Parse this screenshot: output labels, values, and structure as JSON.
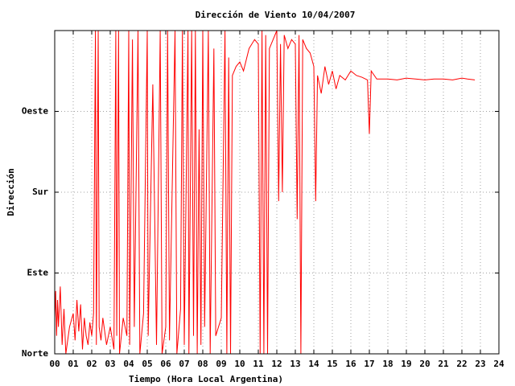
{
  "chart_data": {
    "type": "line",
    "title": "Dirección de Viento 10/04/2007",
    "xlabel": "Tiempo (Hora Local Argentina)",
    "ylabel": "Dirección",
    "color": "#ff0000",
    "grid": true,
    "xlim": [
      0,
      24
    ],
    "ylim": [
      0,
      360
    ],
    "xticks": [
      {
        "value": 0,
        "label": "00"
      },
      {
        "value": 1,
        "label": "01"
      },
      {
        "value": 2,
        "label": "02"
      },
      {
        "value": 3,
        "label": "03"
      },
      {
        "value": 4,
        "label": "04"
      },
      {
        "value": 5,
        "label": "05"
      },
      {
        "value": 6,
        "label": "06"
      },
      {
        "value": 7,
        "label": "07"
      },
      {
        "value": 8,
        "label": "08"
      },
      {
        "value": 9,
        "label": "09"
      },
      10,
      11,
      12,
      13,
      14,
      15,
      16,
      17,
      18,
      19,
      20,
      21,
      22,
      23,
      24
    ],
    "yticks": [
      {
        "value": 0,
        "label": "Norte"
      },
      {
        "value": 90,
        "label": "Este"
      },
      {
        "value": 180,
        "label": "Sur"
      },
      {
        "value": 270,
        "label": "Oeste"
      }
    ],
    "x": [
      0.0,
      0.05,
      0.1,
      0.15,
      0.2,
      0.3,
      0.4,
      0.5,
      0.6,
      0.8,
      1.0,
      1.1,
      1.2,
      1.3,
      1.4,
      1.5,
      1.6,
      1.7,
      1.8,
      1.9,
      2.0,
      2.1,
      2.2,
      2.25,
      2.3,
      2.35,
      2.4,
      2.5,
      2.6,
      2.8,
      3.0,
      3.2,
      3.3,
      3.35,
      3.45,
      3.5,
      3.7,
      3.9,
      4.0,
      4.05,
      4.2,
      4.3,
      4.5,
      4.6,
      4.8,
      5.0,
      5.05,
      5.3,
      5.5,
      5.7,
      5.8,
      6.0,
      6.1,
      6.2,
      6.5,
      6.6,
      6.8,
      6.9,
      7.0,
      7.2,
      7.25,
      7.4,
      7.5,
      7.6,
      7.7,
      7.8,
      7.9,
      8.0,
      8.1,
      8.3,
      8.4,
      8.6,
      8.7,
      9.0,
      9.2,
      9.3,
      9.4,
      9.5,
      9.6,
      9.8,
      10.0,
      10.2,
      10.5,
      10.8,
      11.0,
      11.1,
      11.2,
      11.3,
      11.4,
      11.5,
      11.6,
      11.8,
      12.0,
      12.1,
      12.2,
      12.3,
      12.4,
      12.6,
      12.8,
      13.0,
      13.1,
      13.2,
      13.3,
      13.4,
      13.6,
      13.8,
      14.0,
      14.1,
      14.2,
      14.4,
      14.6,
      14.8,
      15.0,
      15.2,
      15.4,
      15.7,
      16.0,
      16.3,
      16.6,
      16.9,
      17.0,
      17.1,
      17.4,
      18.0,
      18.5,
      19.0,
      19.5,
      20.0,
      20.5,
      21.0,
      21.5,
      22.0,
      22.3,
      22.7
    ],
    "values": [
      40,
      70,
      20,
      60,
      30,
      75,
      10,
      50,
      0,
      30,
      45,
      15,
      60,
      25,
      55,
      5,
      40,
      20,
      10,
      35,
      20,
      45,
      360,
      10,
      190,
      360,
      30,
      15,
      40,
      10,
      30,
      5,
      360,
      20,
      360,
      0,
      40,
      20,
      360,
      10,
      350,
      30,
      360,
      0,
      45,
      360,
      20,
      300,
      10,
      360,
      0,
      30,
      360,
      15,
      360,
      0,
      50,
      360,
      10,
      360,
      0,
      360,
      20,
      360,
      0,
      250,
      10,
      360,
      30,
      360,
      0,
      340,
      20,
      40,
      360,
      0,
      330,
      0,
      310,
      320,
      325,
      315,
      340,
      350,
      345,
      0,
      360,
      0,
      355,
      0,
      340,
      350,
      360,
      170,
      345,
      180,
      355,
      340,
      350,
      345,
      150,
      355,
      0,
      350,
      340,
      335,
      320,
      170,
      310,
      290,
      320,
      300,
      315,
      295,
      310,
      305,
      315,
      310,
      308,
      305,
      245,
      315,
      306,
      306,
      305,
      307,
      306,
      305,
      306,
      306,
      305,
      307,
      306,
      305
    ]
  }
}
